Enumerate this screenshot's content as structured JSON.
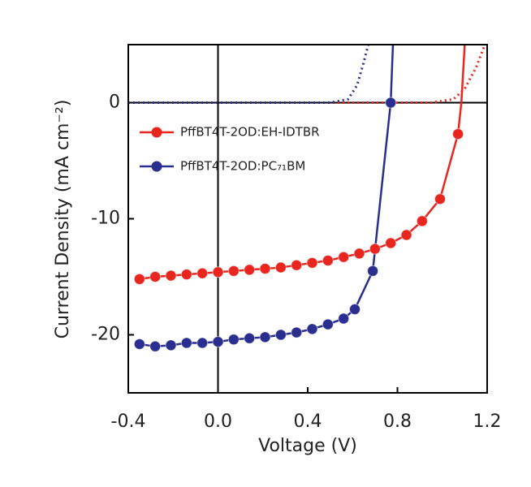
{
  "chart_data": {
    "type": "line",
    "xlabel": "Voltage (V)",
    "ylabel": "Current Density (mA cm⁻²)",
    "xlim": [
      -0.4,
      1.2
    ],
    "xticks": [
      -0.4,
      {
        "value": 0,
        "label": "0.0"
      },
      0.4,
      0.8,
      1.2
    ],
    "ylim": [
      -25,
      5
    ],
    "yticks": [
      -20,
      -10,
      0
    ],
    "zero_lines": true,
    "legend": "upper left",
    "series": [
      {
        "name": "PffBT4T-2OD:EH-IDTBR",
        "color": "#e8261f",
        "marker": true,
        "style": "solid",
        "x": [
          -0.35,
          -0.28,
          -0.21,
          -0.14,
          -0.07,
          0.0,
          0.07,
          0.14,
          0.21,
          0.28,
          0.35,
          0.42,
          0.49,
          0.56,
          0.63,
          0.7,
          0.77,
          0.84,
          0.91,
          0.99,
          1.07
        ],
        "values": [
          -15.2,
          -15.0,
          -14.9,
          -14.8,
          -14.7,
          -14.6,
          -14.5,
          -14.4,
          -14.3,
          -14.2,
          -14.0,
          -13.8,
          -13.6,
          -13.3,
          -13.0,
          -12.6,
          -12.1,
          -11.4,
          -10.2,
          -8.3,
          -2.7
        ]
      },
      {
        "name": "PffBT4T-2OD:PC₇₁BM",
        "color": "#2a2f8f",
        "marker": true,
        "style": "solid",
        "x": [
          -0.35,
          -0.28,
          -0.21,
          -0.14,
          -0.07,
          0.0,
          0.07,
          0.14,
          0.21,
          0.28,
          0.35,
          0.42,
          0.49,
          0.56,
          0.61,
          0.69,
          0.77
        ],
        "values": [
          -20.8,
          -21.0,
          -20.9,
          -20.7,
          -20.7,
          -20.6,
          -20.4,
          -20.3,
          -20.2,
          -20.0,
          -19.8,
          -19.5,
          -19.1,
          -18.6,
          -17.8,
          -14.5,
          0
        ]
      },
      {
        "color": "#e8261f",
        "marker": false,
        "style": "solid",
        "x": [
          1.07,
          1.085,
          1.1
        ],
        "values": [
          -2.7,
          0,
          5
        ]
      },
      {
        "color": "#2a2f8f",
        "marker": false,
        "style": "solid",
        "x": [
          0.77,
          0.775,
          0.78
        ],
        "values": [
          0,
          2.5,
          5
        ]
      },
      {
        "color": "#e8261f",
        "marker": false,
        "style": "dotted",
        "x": [
          -0.4,
          0.95,
          1.05,
          1.1,
          1.15,
          1.19
        ],
        "values": [
          0,
          0,
          0.3,
          1.2,
          3,
          5
        ]
      },
      {
        "color": "#2a2f8f",
        "marker": false,
        "style": "dotted",
        "x": [
          -0.4,
          0.5,
          0.58,
          0.62,
          0.65,
          0.67
        ],
        "values": [
          0,
          0,
          0.3,
          1.5,
          3.5,
          5
        ]
      }
    ]
  }
}
